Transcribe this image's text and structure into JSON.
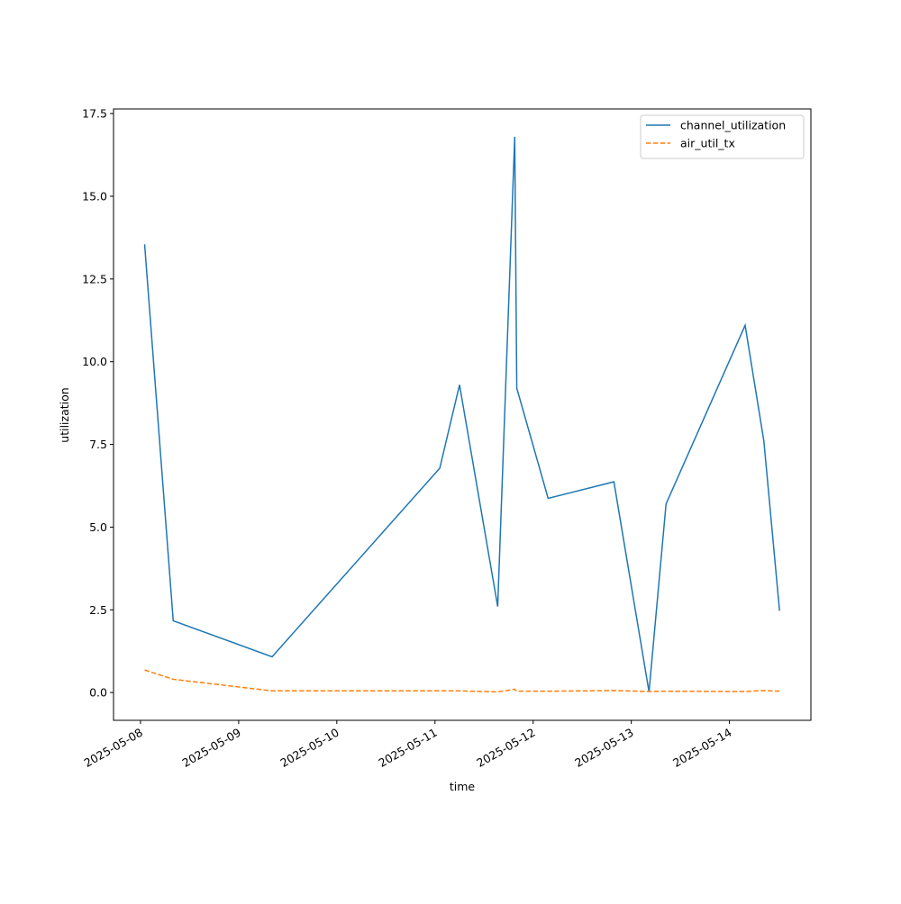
{
  "chart_data": {
    "type": "line",
    "x_label": "time",
    "y_label": "utilization",
    "x": [
      "2025-05-08T01:00",
      "2025-05-08T08:00",
      "2025-05-09T08:10",
      "2025-05-11T01:10",
      "2025-05-11T06:00",
      "2025-05-11T15:20",
      "2025-05-11T19:30",
      "2025-05-11T20:00",
      "2025-05-12T03:40",
      "2025-05-12T19:45",
      "2025-05-13T04:20",
      "2025-05-13T08:30",
      "2025-05-14T03:50",
      "2025-05-14T08:25",
      "2025-05-14T12:15"
    ],
    "series": [
      {
        "name": "channel_utilization",
        "color": "#1f77b4",
        "linestyle": "solid",
        "values": [
          13.55,
          2.17,
          1.08,
          6.78,
          9.3,
          2.6,
          16.8,
          9.2,
          5.87,
          6.37,
          0.02,
          5.7,
          11.1,
          7.6,
          2.47
        ]
      },
      {
        "name": "air_util_tx",
        "color": "#ff7f0e",
        "linestyle": "dashed",
        "values": [
          0.68,
          0.4,
          0.05,
          0.05,
          0.05,
          0.02,
          0.1,
          0.04,
          0.04,
          0.06,
          0.03,
          0.04,
          0.03,
          0.06,
          0.04
        ]
      }
    ],
    "xlim": [
      "2025-05-07T17:24",
      "2025-05-14T19:55"
    ],
    "xticks": [
      "2025-05-08",
      "2025-05-09",
      "2025-05-10",
      "2025-05-11",
      "2025-05-12",
      "2025-05-13",
      "2025-05-14"
    ],
    "ylim": [
      -0.84,
      17.64
    ],
    "yticks": [
      {
        "value": 0,
        "label": "0.0"
      },
      2.5,
      {
        "value": 5,
        "label": "5.0"
      },
      7.5,
      {
        "value": 10,
        "label": "10.0"
      },
      12.5,
      {
        "value": 15,
        "label": "15.0"
      },
      17.5
    ],
    "legend": "upper right",
    "grid": false
  }
}
